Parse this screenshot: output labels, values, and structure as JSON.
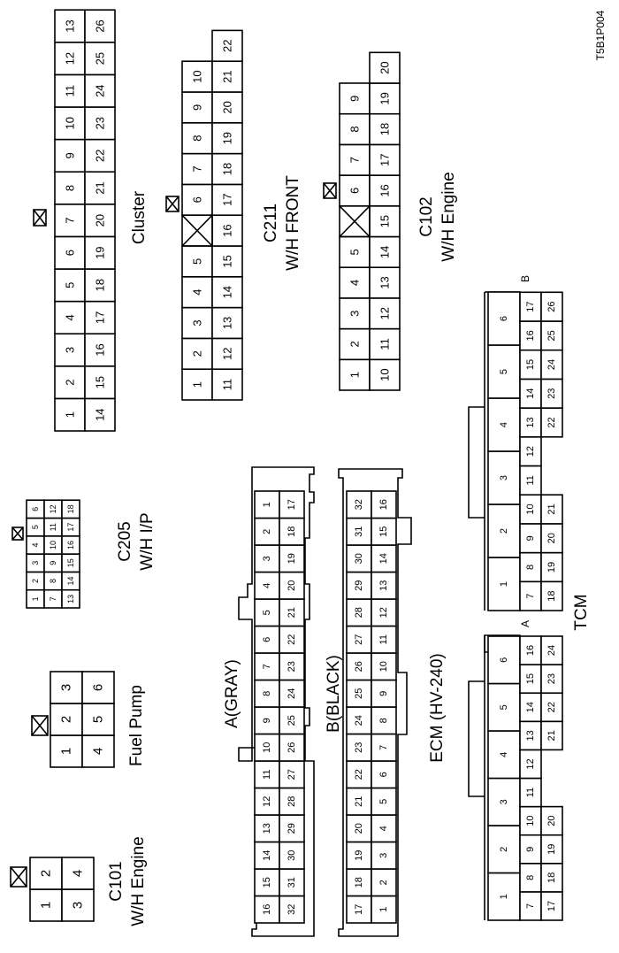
{
  "figure_code": "T5B1P004",
  "connectors": {
    "cluster": {
      "label": "Cluster",
      "row1": [
        "1",
        "2",
        "3",
        "4",
        "5",
        "6",
        "7",
        "8",
        "9",
        "10",
        "11",
        "12",
        "13"
      ],
      "row2": [
        "14",
        "15",
        "16",
        "17",
        "18",
        "19",
        "20",
        "21",
        "22",
        "23",
        "24",
        "25",
        "26"
      ]
    },
    "c211": {
      "label1": "C211",
      "label2": "W/H FRONT",
      "row1": [
        "1",
        "2",
        "3",
        "4",
        "5",
        "6",
        "7",
        "8",
        "9",
        "10"
      ],
      "row2": [
        "11",
        "12",
        "13",
        "14",
        "15",
        "16",
        "17",
        "18",
        "19",
        "20",
        "21",
        "22"
      ]
    },
    "c102": {
      "label1": "C102",
      "label2": "W/H Engine",
      "row1": [
        "1",
        "2",
        "3",
        "4",
        "5",
        "6",
        "7",
        "8",
        "9"
      ],
      "row2": [
        "10",
        "11",
        "12",
        "13",
        "14",
        "15",
        "16",
        "17",
        "18",
        "19",
        "20"
      ]
    },
    "c205": {
      "label1": "C205",
      "label2": "W/H I/P",
      "row1": [
        "1",
        "2",
        "3",
        "4",
        "5",
        "6"
      ],
      "row2": [
        "7",
        "8",
        "9",
        "10",
        "11",
        "12"
      ],
      "row3": [
        "13",
        "14",
        "15",
        "16",
        "17",
        "18"
      ]
    },
    "fuel_pump": {
      "label": "Fuel Pump",
      "row1": [
        "1",
        "2",
        "3"
      ],
      "row2": [
        "4",
        "5",
        "6"
      ]
    },
    "c101": {
      "label1": "C101",
      "label2": "W/H Engine",
      "row1": [
        "1",
        "2"
      ],
      "row2": [
        "3",
        "4"
      ]
    },
    "ecm": {
      "label": "ECM (HV-240)",
      "a_label": "A(GRAY)",
      "a_row1": [
        "16",
        "15",
        "14",
        "13",
        "12",
        "11",
        "10",
        "9",
        "8",
        "7",
        "6",
        "5",
        "4",
        "3",
        "2",
        "1"
      ],
      "a_row2": [
        "32",
        "31",
        "30",
        "29",
        "28",
        "27",
        "26",
        "25",
        "24",
        "23",
        "22",
        "21",
        "20",
        "19",
        "18",
        "17"
      ],
      "b_label": "B(BLACK)",
      "b_row1": [
        "17",
        "18",
        "19",
        "20",
        "21",
        "22",
        "23",
        "24",
        "25",
        "26",
        "27",
        "28",
        "29",
        "30",
        "31",
        "32"
      ],
      "b_row2": [
        "1",
        "2",
        "3",
        "4",
        "5",
        "6",
        "7",
        "8",
        "9",
        "10",
        "11",
        "12",
        "13",
        "14",
        "15",
        "16"
      ]
    },
    "tcm": {
      "label": "TCM",
      "a_label": "A",
      "a_row1": [
        "1",
        "2",
        "3",
        "4",
        "5",
        "6"
      ],
      "a_row2": [
        "7",
        "8",
        "9",
        "10",
        "11",
        "12",
        "13",
        "14",
        "15",
        "16"
      ],
      "a_row3": [
        "17",
        "18",
        "19",
        "20",
        "21",
        "22",
        "23",
        "24"
      ],
      "b_label": "B",
      "b_row1": [
        "1",
        "2",
        "3",
        "4",
        "5",
        "6"
      ],
      "b_row2": [
        "7",
        "8",
        "9",
        "10",
        "11",
        "12",
        "13",
        "14",
        "15",
        "16",
        "17"
      ],
      "b_row3": [
        "18",
        "19",
        "20",
        "21",
        "22",
        "23",
        "24",
        "25",
        "26"
      ]
    }
  }
}
